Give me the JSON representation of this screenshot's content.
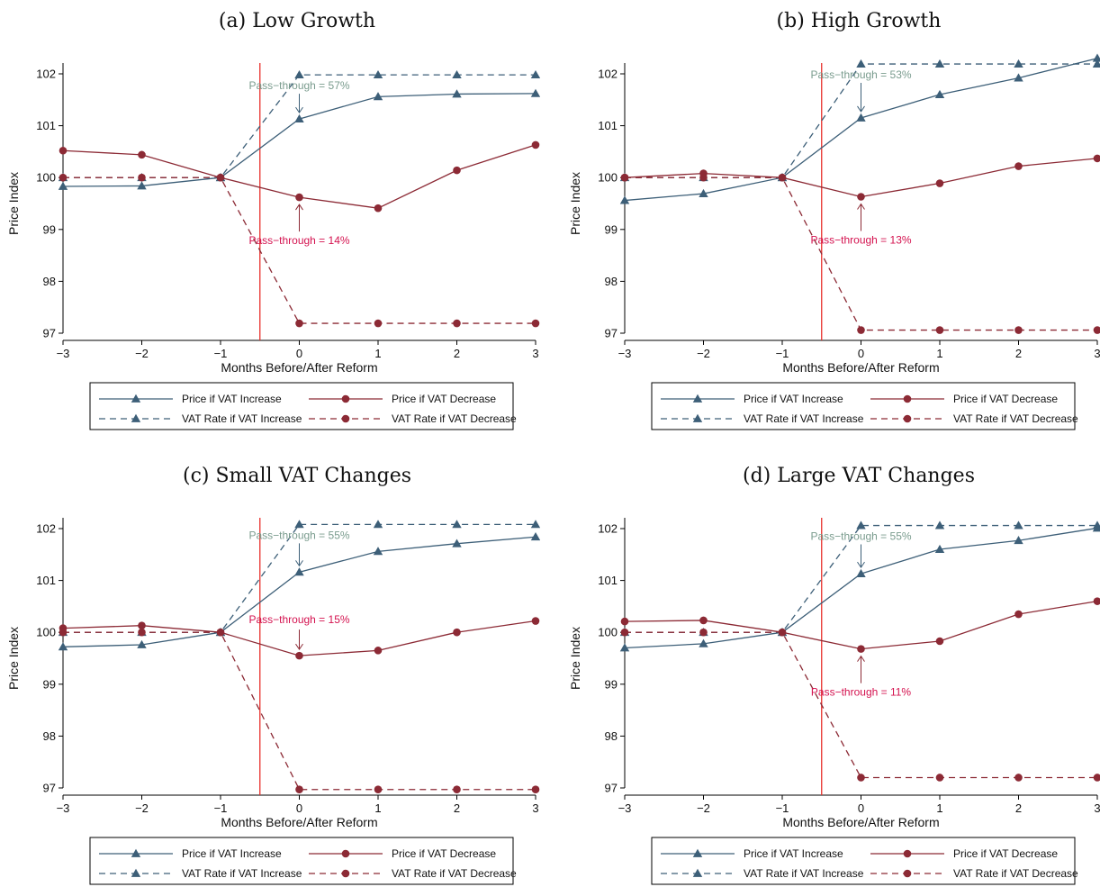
{
  "chart_data": [
    {
      "type": "line",
      "title": "(a) Low Growth",
      "xlabel": "Months Before/After Reform",
      "ylabel": "Price Index",
      "x": [
        -3,
        -2,
        -1,
        0,
        1,
        2,
        3
      ],
      "xlim": [
        -3,
        3
      ],
      "ylim": [
        97,
        102
      ],
      "yticks": [
        97,
        98,
        99,
        100,
        101,
        102
      ],
      "reference_line_x": -0.5,
      "series": [
        {
          "name": "Price if VAT Increase",
          "values": [
            99.83,
            99.84,
            100.0,
            101.13,
            101.56,
            101.61,
            101.62
          ]
        },
        {
          "name": "Price if VAT Decrease",
          "values": [
            100.52,
            100.44,
            100.0,
            99.62,
            99.41,
            100.14,
            100.63
          ]
        },
        {
          "name": "VAT Rate if VAT Increase",
          "values": [
            100.0,
            100.0,
            100.0,
            101.98,
            101.98,
            101.98,
            101.98
          ]
        },
        {
          "name": "VAT Rate if VAT Decrease",
          "values": [
            100.0,
            100.0,
            100.0,
            97.19,
            97.19,
            97.19,
            97.19
          ]
        }
      ],
      "annotations": [
        {
          "text": "Pass−through = 57%",
          "series": "increase"
        },
        {
          "text": "Pass−through = 14%",
          "series": "decrease"
        }
      ]
    },
    {
      "type": "line",
      "title": "(b) High Growth",
      "xlabel": "Months Before/After Reform",
      "ylabel": "Price Index",
      "x": [
        -3,
        -2,
        -1,
        0,
        1,
        2,
        3
      ],
      "xlim": [
        -3,
        3
      ],
      "ylim": [
        97,
        102
      ],
      "yticks": [
        97,
        98,
        99,
        100,
        101,
        102
      ],
      "reference_line_x": -0.5,
      "series": [
        {
          "name": "Price if VAT Increase",
          "values": [
            99.56,
            99.69,
            100.0,
            101.15,
            101.6,
            101.92,
            102.3
          ]
        },
        {
          "name": "Price if VAT Decrease",
          "values": [
            100.0,
            100.08,
            100.0,
            99.63,
            99.89,
            100.22,
            100.37
          ]
        },
        {
          "name": "VAT Rate if VAT Increase",
          "values": [
            100.0,
            100.0,
            100.0,
            102.19,
            102.19,
            102.19,
            102.19
          ]
        },
        {
          "name": "VAT Rate if VAT Decrease",
          "values": [
            100.0,
            100.0,
            100.0,
            97.06,
            97.06,
            97.06,
            97.06
          ]
        }
      ],
      "annotations": [
        {
          "text": "Pass−through = 53%",
          "series": "increase"
        },
        {
          "text": "Pass−through = 13%",
          "series": "decrease"
        }
      ]
    },
    {
      "type": "line",
      "title": "(c) Small VAT Changes",
      "xlabel": "Months Before/After Reform",
      "ylabel": "Price Index",
      "x": [
        -3,
        -2,
        -1,
        0,
        1,
        2,
        3
      ],
      "xlim": [
        -3,
        3
      ],
      "ylim": [
        97,
        102
      ],
      "yticks": [
        97,
        98,
        99,
        100,
        101,
        102
      ],
      "reference_line_x": -0.5,
      "series": [
        {
          "name": "Price if VAT Increase",
          "values": [
            99.72,
            99.76,
            100.0,
            101.16,
            101.56,
            101.71,
            101.84
          ]
        },
        {
          "name": "Price if VAT Decrease",
          "values": [
            100.08,
            100.13,
            100.0,
            99.55,
            99.65,
            100.0,
            100.22
          ]
        },
        {
          "name": "VAT Rate if VAT Increase",
          "values": [
            100.0,
            100.0,
            100.0,
            102.08,
            102.08,
            102.08,
            102.08
          ]
        },
        {
          "name": "VAT Rate if VAT Decrease",
          "values": [
            100.0,
            100.0,
            100.0,
            96.97,
            96.97,
            96.97,
            96.97
          ]
        }
      ],
      "annotations": [
        {
          "text": "Pass−through = 55%",
          "series": "increase"
        },
        {
          "text": "Pass−through = 15%",
          "series": "decrease"
        }
      ]
    },
    {
      "type": "line",
      "title": "(d) Large VAT Changes",
      "xlabel": "Months Before/After Reform",
      "ylabel": "Price Index",
      "x": [
        -3,
        -2,
        -1,
        0,
        1,
        2,
        3
      ],
      "xlim": [
        -3,
        3
      ],
      "ylim": [
        97,
        102
      ],
      "yticks": [
        97,
        98,
        99,
        100,
        101,
        102
      ],
      "reference_line_x": -0.5,
      "series": [
        {
          "name": "Price if VAT Increase",
          "values": [
            99.7,
            99.78,
            100.0,
            101.13,
            101.6,
            101.77,
            102.01
          ]
        },
        {
          "name": "Price if VAT Decrease",
          "values": [
            100.21,
            100.23,
            100.0,
            99.68,
            99.83,
            100.35,
            100.6
          ]
        },
        {
          "name": "VAT Rate if VAT Increase",
          "values": [
            100.0,
            100.0,
            100.0,
            102.06,
            102.06,
            102.06,
            102.06
          ]
        },
        {
          "name": "VAT Rate if VAT Decrease",
          "values": [
            100.0,
            100.0,
            100.0,
            97.2,
            97.2,
            97.2,
            97.2
          ]
        }
      ],
      "annotations": [
        {
          "text": "Pass−through = 55%",
          "series": "increase"
        },
        {
          "text": "Pass−through = 11%",
          "series": "decrease"
        }
      ]
    }
  ],
  "colors": {
    "increase": "#3d5f78",
    "decrease": "#8c2a35",
    "increase_annotation": "#7a9c8e",
    "decrease_annotation": "#d4124f",
    "reference_line": "#e8302b"
  }
}
